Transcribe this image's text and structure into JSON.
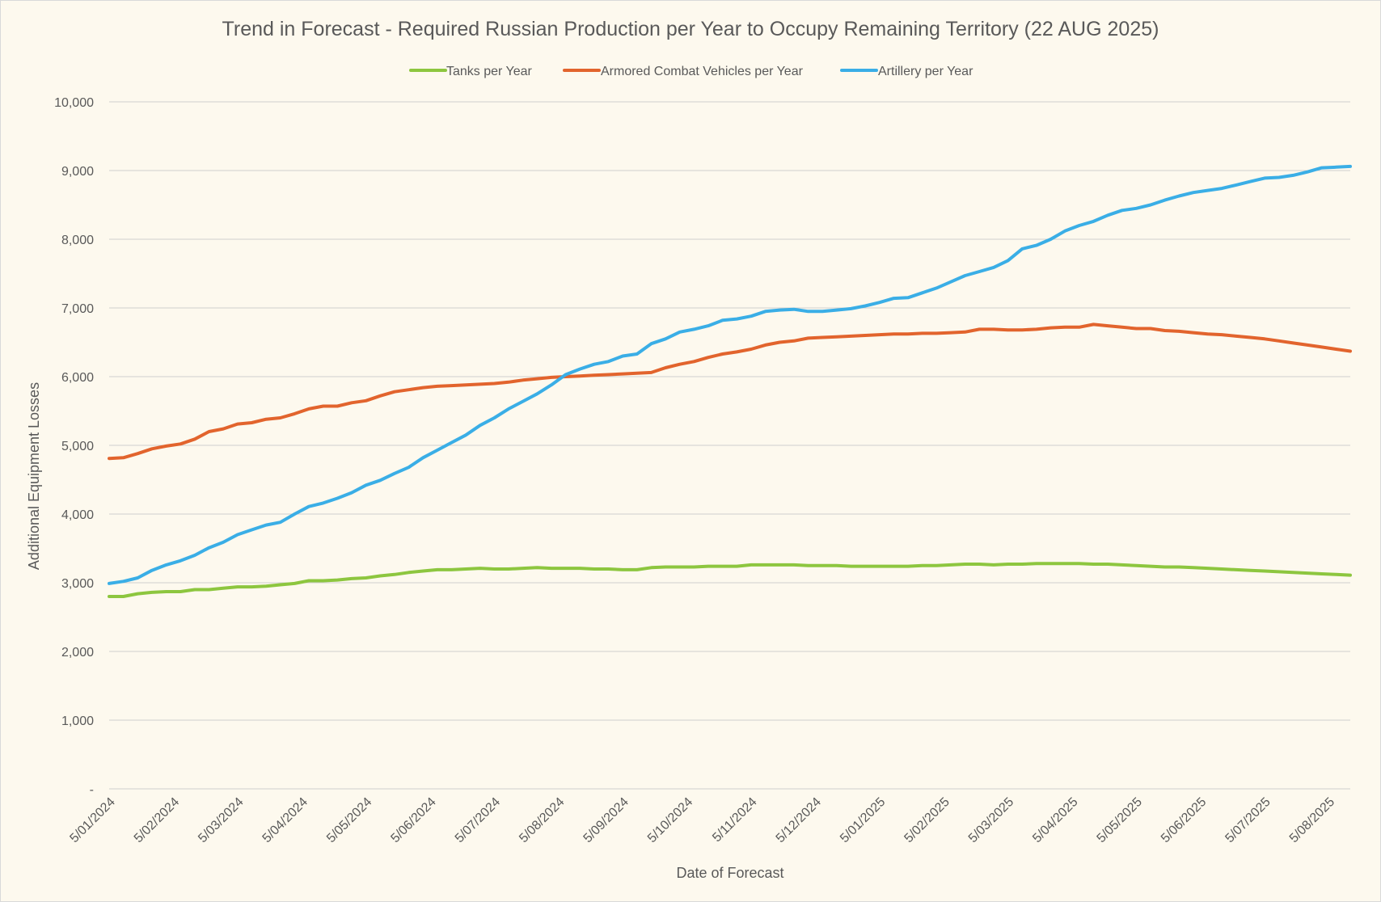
{
  "chart_data": {
    "type": "line",
    "title": "Trend in Forecast - Required Russian Production per Year to Occupy Remaining Territory (22 AUG 2025)",
    "xlabel": "Date of Forecast",
    "ylabel": "Additional Equipment Losses",
    "ylim": [
      0,
      10000
    ],
    "y_ticks": [
      0,
      1000,
      2000,
      3000,
      4000,
      5000,
      6000,
      7000,
      8000,
      9000,
      10000
    ],
    "y_tick_labels": [
      "-",
      "1,000",
      "2,000",
      "3,000",
      "4,000",
      "5,000",
      "6,000",
      "7,000",
      "8,000",
      "9,000",
      "10,000"
    ],
    "x_tick_labels": [
      "5/01/2024",
      "5/02/2024",
      "5/03/2024",
      "5/04/2024",
      "5/05/2024",
      "5/06/2024",
      "5/07/2024",
      "5/08/2024",
      "5/09/2024",
      "5/10/2024",
      "5/11/2024",
      "5/12/2024",
      "5/01/2025",
      "5/02/2025",
      "5/03/2025",
      "5/04/2025",
      "5/05/2025",
      "5/06/2025",
      "5/07/2025",
      "5/08/2025"
    ],
    "grid": true,
    "legend_position": "top",
    "series": [
      {
        "name": "Tanks per Year",
        "color": "#8dc63f",
        "values": [
          2800,
          2800,
          2840,
          2860,
          2870,
          2870,
          2900,
          2900,
          2920,
          2940,
          2940,
          2950,
          2970,
          2990,
          3030,
          3030,
          3040,
          3060,
          3070,
          3100,
          3120,
          3150,
          3170,
          3190,
          3190,
          3200,
          3210,
          3200,
          3200,
          3210,
          3220,
          3210,
          3210,
          3210,
          3200,
          3200,
          3190,
          3190,
          3220,
          3230,
          3230,
          3230,
          3240,
          3240,
          3240,
          3260,
          3260,
          3260,
          3260,
          3250,
          3250,
          3250,
          3240,
          3240,
          3240,
          3240,
          3240,
          3250,
          3250,
          3260,
          3270,
          3270,
          3260,
          3270,
          3270,
          3280,
          3280,
          3280,
          3280,
          3270,
          3270,
          3260,
          3250,
          3240,
          3230,
          3230,
          3220,
          3210,
          3200,
          3190,
          3180,
          3170,
          3160,
          3150,
          3140,
          3130,
          3120,
          3110
        ]
      },
      {
        "name": "Armored Combat Vehicles per Year",
        "color": "#e2642d",
        "values": [
          4810,
          4820,
          4880,
          4950,
          4990,
          5020,
          5090,
          5200,
          5240,
          5310,
          5330,
          5380,
          5400,
          5460,
          5530,
          5570,
          5570,
          5620,
          5650,
          5720,
          5780,
          5810,
          5840,
          5860,
          5870,
          5880,
          5890,
          5900,
          5920,
          5950,
          5970,
          5990,
          6000,
          6010,
          6020,
          6030,
          6040,
          6050,
          6060,
          6130,
          6180,
          6220,
          6280,
          6330,
          6360,
          6400,
          6460,
          6500,
          6520,
          6560,
          6570,
          6580,
          6590,
          6600,
          6610,
          6620,
          6620,
          6630,
          6630,
          6640,
          6650,
          6690,
          6690,
          6680,
          6680,
          6690,
          6710,
          6720,
          6720,
          6760,
          6740,
          6720,
          6700,
          6700,
          6670,
          6660,
          6640,
          6620,
          6610,
          6590,
          6570,
          6550,
          6520,
          6490,
          6460,
          6430,
          6400,
          6370
        ]
      },
      {
        "name": "Artillery per Year",
        "color": "#3aaee6",
        "values": [
          2990,
          3020,
          3070,
          3180,
          3260,
          3320,
          3400,
          3510,
          3590,
          3700,
          3770,
          3840,
          3880,
          4000,
          4110,
          4160,
          4230,
          4310,
          4420,
          4490,
          4590,
          4680,
          4820,
          4930,
          5040,
          5150,
          5290,
          5400,
          5530,
          5640,
          5750,
          5880,
          6030,
          6110,
          6180,
          6220,
          6300,
          6330,
          6480,
          6550,
          6650,
          6690,
          6740,
          6820,
          6840,
          6880,
          6950,
          6970,
          6980,
          6950,
          6950,
          6970,
          6990,
          7030,
          7080,
          7140,
          7150,
          7220,
          7290,
          7380,
          7470,
          7530,
          7590,
          7690,
          7860,
          7910,
          8000,
          8120,
          8200,
          8260,
          8350,
          8420,
          8450,
          8500,
          8570,
          8630,
          8680,
          8710,
          8740,
          8790,
          8840,
          8890,
          8900,
          8930,
          8980,
          9040,
          9050,
          9060
        ]
      }
    ]
  }
}
